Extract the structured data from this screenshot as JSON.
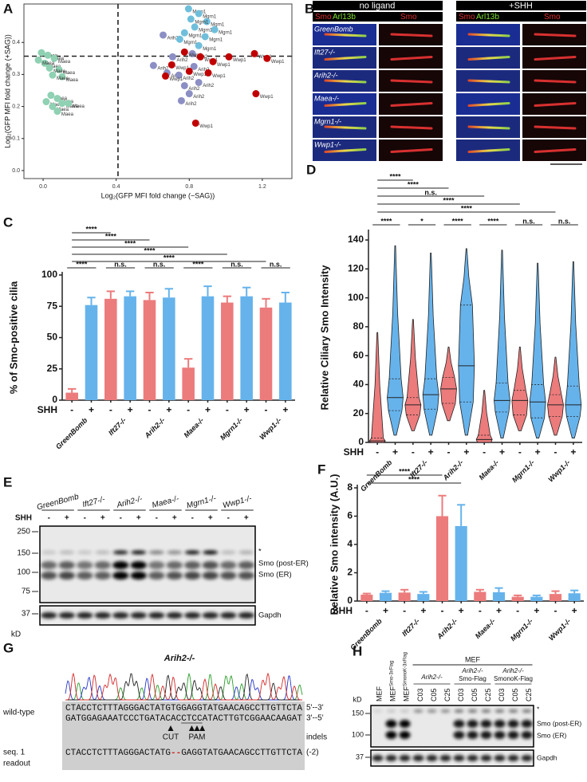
{
  "panel_labels": [
    "A",
    "B",
    "C",
    "D",
    "E",
    "F",
    "G",
    "H"
  ],
  "chart_data": [
    {
      "type": "scatter",
      "xlabel": "Log₂(GFP MFI fold change (−SAG))",
      "ylabel": "Log₂(GFP MFI fold change (+SAG))",
      "xlim": [
        -0.105,
        1.362
      ],
      "ylim": [
        -0.025,
        0.52
      ],
      "xticks": [
        {
          "value": 0,
          "label": "0.0"
        },
        {
          "value": 0.4,
          "label": "0.4"
        },
        {
          "value": 0.8,
          "label": "0.8"
        },
        {
          "value": 1.2,
          "label": "1.2"
        }
      ],
      "yticks": [
        {
          "value": 0,
          "label": "0.0"
        },
        {
          "value": 0.1,
          "label": "0.1"
        },
        {
          "value": 0.2,
          "label": "0.2"
        },
        {
          "value": 0.3,
          "label": "0.3"
        },
        {
          "value": 0.4,
          "label": "0.4"
        }
      ],
      "cutoff_x": 0.41,
      "cutoff_y": 0.357,
      "series": [
        {
          "name": "Maea",
          "color": "#8fd1b2",
          "x": [
            -0.009,
            0.026,
            0.061,
            0.009,
            0.087,
            0.035,
            -0.026,
            0.104,
            0.052,
            0.043,
            0.078,
            0.017,
            0.104,
            0.052,
            0.139,
            0.078
          ],
          "y": [
            0.368,
            0.36,
            0.35,
            0.335,
            0.315,
            0.32,
            0.345,
            0.293,
            0.298,
            0.235,
            0.225,
            0.215,
            0.21,
            0.2,
            0.21,
            0.185
          ]
        },
        {
          "name": "Arih2",
          "color": "#8c8fc4",
          "x": [
            0.657,
            0.604,
            0.678,
            0.743,
            0.817,
            0.826,
            0.774,
            0.8,
            0.757,
            0.852,
            0.709
          ],
          "y": [
            0.423,
            0.328,
            0.305,
            0.298,
            0.365,
            0.325,
            0.265,
            0.24,
            0.218,
            0.275,
            0.355
          ]
        },
        {
          "name": "Mgrn1",
          "color": "#6fbfdc",
          "x": [
            0.796,
            0.852,
            0.896,
            0.83,
            0.774,
            0.887,
            0.748,
            0.852,
            0.809,
            0.939
          ],
          "y": [
            0.505,
            0.49,
            0.465,
            0.448,
            0.43,
            0.418,
            0.41,
            0.39,
            0.473,
            0.44
          ]
        },
        {
          "name": "Wwp1",
          "color": "#c00000",
          "x": [
            0.774,
            0.704,
            0.861,
            0.93,
            1.017,
            1.157,
            1.226,
            0.8,
            0.904,
            1.165,
            0.835,
            0.67
          ],
          "y": [
            0.37,
            0.33,
            0.355,
            0.34,
            0.355,
            0.365,
            0.35,
            0.31,
            0.305,
            0.24,
            0.148,
            0.295
          ]
        }
      ]
    },
    {
      "type": "bar",
      "ylabel": "% of Smo-positive cilia",
      "factor_label": "SHH",
      "categories": [
        "GreenBomb",
        "Ift27-/-",
        "Arih2-/-",
        "Maea-/-",
        "Mgrn1-/-",
        "Wwp1-/-"
      ],
      "ylim": [
        0,
        100
      ],
      "yticks": [
        0,
        25,
        50,
        75,
        100
      ],
      "series": [
        {
          "name": "-",
          "color": "#ec7b7c",
          "values": [
            6,
            81,
            80,
            26,
            78,
            74
          ],
          "errors": [
            3,
            6,
            6,
            7,
            5,
            7
          ]
        },
        {
          "name": "+",
          "color": "#66b3ec",
          "values": [
            76,
            83,
            82,
            83,
            83,
            78
          ],
          "errors": [
            6,
            4,
            7,
            8,
            7,
            8
          ]
        }
      ],
      "annotations": {
        "vs_control": [
          "****",
          "****",
          "****",
          "****",
          "****"
        ],
        "within_group": [
          "****",
          "n.s.",
          "n.s.",
          "****",
          "n.s.",
          "n.s."
        ]
      }
    },
    {
      "type": "violin",
      "ylabel": "Relative Ciliary Smo Intensity",
      "factor_label": "SHH",
      "categories": [
        "GreenBomb",
        "Ift27-/-",
        "Arih2-/-",
        "Maea-/-",
        "Mgrn1-/-",
        "Wwp1-/-"
      ],
      "ylim": [
        0,
        145
      ],
      "yticks": [
        0,
        20,
        40,
        60,
        80,
        100,
        120,
        140
      ],
      "series": [
        {
          "name": "-",
          "color": "#ec7b7c",
          "median": [
            1,
            26,
            37,
            2,
            29,
            26
          ],
          "q1": [
            0,
            19,
            27,
            0,
            19,
            18
          ],
          "q3": [
            3,
            31,
            45,
            5,
            36,
            33
          ],
          "min": [
            0,
            8,
            15,
            0,
            8,
            5
          ],
          "max": [
            76,
            85,
            66,
            36,
            66,
            59
          ]
        },
        {
          "name": "+",
          "color": "#66b3ec",
          "median": [
            31,
            33,
            53,
            29,
            28,
            26
          ],
          "q1": [
            22,
            23,
            28,
            21,
            17,
            18
          ],
          "q3": [
            44,
            44,
            95,
            41,
            40,
            39
          ],
          "min": [
            5,
            5,
            5,
            3,
            3,
            3
          ],
          "max": [
            136,
            131,
            134,
            133,
            124,
            125
          ]
        }
      ],
      "annotations": {
        "vs_control": [
          "****",
          "****",
          "n.s.",
          "****",
          "****"
        ],
        "within_group": [
          "****",
          "*",
          "****",
          "****",
          "n.s.",
          "n.s."
        ]
      }
    },
    {
      "type": "bar",
      "ylabel": "Relative Smo intensity (A.U.)",
      "factor_label": "SHH",
      "categories": [
        "GreenBomb",
        "Ift27-/-",
        "Arih2-/-",
        "Maea-/-",
        "Mgrn1-/-",
        "Wwp1-/-"
      ],
      "ylim": [
        0,
        8
      ],
      "yticks": [
        0,
        2,
        4,
        6,
        8
      ],
      "series": [
        {
          "name": "-",
          "color": "#ec7b7c",
          "values": [
            0.45,
            0.6,
            6.0,
            0.65,
            0.3,
            0.5
          ],
          "errors": [
            0.08,
            0.2,
            1.45,
            0.15,
            0.1,
            0.2
          ]
        },
        {
          "name": "+",
          "color": "#66b3ec",
          "values": [
            0.58,
            0.5,
            5.3,
            0.62,
            0.3,
            0.55
          ],
          "errors": [
            0.12,
            0.15,
            1.5,
            0.3,
            0.1,
            0.2
          ]
        }
      ],
      "annotations": {
        "vs_control": [
          "****",
          "****"
        ]
      }
    }
  ],
  "microscopy": {
    "conditions": [
      "no ligand",
      "+SHH"
    ],
    "merge_channels": [
      "Smo",
      "Arl13b"
    ],
    "single_channel": "Smo"
  },
  "blot_e": {
    "factor_label": "SHH",
    "lane_signs": [
      "-",
      "+"
    ],
    "ladder": [
      250,
      150,
      100,
      75,
      37
    ],
    "unit": "kD",
    "right_labels": [
      "*",
      "Smo (post-ER)",
      "Smo (ER)",
      "Gapdh"
    ]
  },
  "sequencing": {
    "title": "Arih2-/-",
    "wild_type_label": "wild-type",
    "top_strand": "CTACCTCTTTAGGGACTATGTGGAGGTATGAACAGCCTTGTTCTA",
    "top_dir": "5'--3'",
    "bottom_strand": "GATGGAGAAATCCCTGATACACCTCCATACTTGTCGGAACAAGAT",
    "bottom_dir": "3'--5'",
    "cut": "CUT",
    "pam": "PAM",
    "indels_label": "indels",
    "seq_label": "seq. 1",
    "readout_label": "readout",
    "readout_left": "CTACCTCTTTAGGGACTATG",
    "deletion": "--",
    "readout_right": "GAGGTATGAACAGCCTTGTTCTA",
    "indel": "(-2)"
  },
  "blot_h": {
    "header": "MEF",
    "control_lanes": [
      {
        "label": "MEF"
      },
      {
        "label": "MEF",
        "sup": "Smo-3xFlag"
      },
      {
        "label": "MEF",
        "sup": "SmonoK-3xFlag"
      }
    ],
    "clone_groups": [
      {
        "name": "Arih2-/-",
        "clones": [
          "C03",
          "C05",
          "C25"
        ]
      },
      {
        "name": "Arih2-/-",
        "sub": "Smo-Flag",
        "clones": [
          "C03",
          "C05",
          "C25"
        ]
      },
      {
        "name": "Arih2-/-",
        "sub": "SmonoK-Flag",
        "clones": [
          "C03",
          "C05",
          "C25"
        ]
      }
    ],
    "ladder": [
      150,
      100,
      37
    ],
    "unit": "kD",
    "right_labels": [
      "*",
      "Smo (post-ER)",
      "Smo (ER)",
      "Gapdh"
    ]
  }
}
